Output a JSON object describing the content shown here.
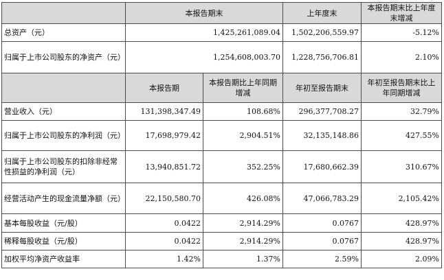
{
  "top_header": [
    "本报告期末",
    "上年度末",
    "本报告期末比上年度末增减"
  ],
  "top_rows": [
    {
      "label": "总资产（元）",
      "values": [
        "1,425,261,089.04",
        "1,502,206,559.97",
        "-5.12%"
      ]
    },
    {
      "label": "归属于上市公司股东的净资产（元）",
      "values": [
        "1,254,608,003.70",
        "1,228,756,706.81",
        "2.10%"
      ]
    }
  ],
  "bottom_header": [
    "本报告期",
    "本报告期比上年同期增减",
    "年初至报告期末",
    "年初至报告期末比上年同期增减"
  ],
  "bottom_rows": [
    {
      "label": "营业收入（元）",
      "values": [
        "131,398,347.49",
        "108.68%",
        "296,377,708.27",
        "32.79%"
      ]
    },
    {
      "label": "归属于上市公司股东的净利润（元）",
      "values": [
        "17,698,979.42",
        "2,904.51%",
        "32,135,148.86",
        "427.55%"
      ]
    },
    {
      "label": "归属于上市公司股东的扣除非经常性损益的净利润（元）",
      "values": [
        "13,940,851.72",
        "352.25%",
        "17,680,662.39",
        "310.67%"
      ]
    },
    {
      "label": "经营活动产生的现金流量净额（元）",
      "values": [
        "22,150,580.70",
        "426.08%",
        "47,066,783.29",
        "2,105.42%"
      ]
    },
    {
      "label": "基本每股收益（元/股）",
      "values": [
        "0.0422",
        "2,914.29%",
        "0.0767",
        "428.97%"
      ]
    },
    {
      "label": "稀释每股收益（元/股）",
      "values": [
        "0.0422",
        "2,914.29%",
        "0.0767",
        "428.97%"
      ]
    },
    {
      "label": "加权平均净资产收益率",
      "values": [
        "1.42%",
        "1.37%",
        "2.59%",
        "2.09%"
      ]
    }
  ]
}
